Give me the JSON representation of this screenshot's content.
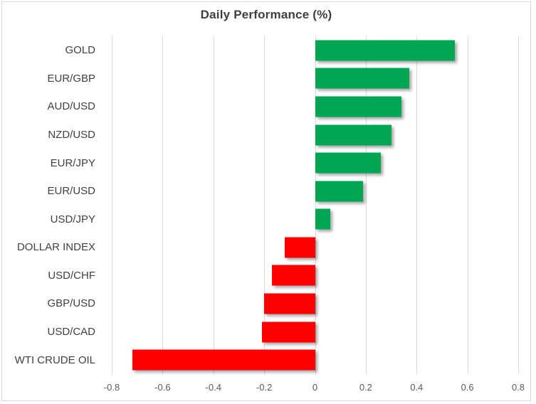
{
  "chart_data": {
    "type": "bar",
    "orientation": "horizontal",
    "title": "Daily Performance (%)",
    "categories": [
      "GOLD",
      "EUR/GBP",
      "AUD/USD",
      "NZD/USD",
      "EUR/JPY",
      "EUR/USD",
      "USD/JPY",
      "DOLLAR INDEX",
      "USD/CHF",
      "GBP/USD",
      "USD/CAD",
      "WTI CRUDE OIL"
    ],
    "values": [
      0.55,
      0.37,
      0.34,
      0.3,
      0.26,
      0.19,
      0.06,
      -0.12,
      -0.17,
      -0.2,
      -0.21,
      -0.72
    ],
    "xlim": [
      -0.8,
      0.8
    ],
    "x_ticks": [
      -0.8,
      -0.6,
      -0.4,
      -0.2,
      0,
      0.2,
      0.4,
      0.6,
      0.8
    ],
    "x_tick_labels": [
      "-0.8",
      "-0.6",
      "-0.4",
      "-0.2",
      "0",
      "0.2",
      "0.4",
      "0.6",
      "0.8"
    ],
    "grid": true,
    "legend": false,
    "colors": {
      "positive": "#00A651",
      "negative": "#FF0000",
      "grid": "#D9D9D9",
      "border": "#D9D9D9",
      "title": "#3F3F3F",
      "category_label": "#404040",
      "tick_label": "#595959"
    }
  }
}
